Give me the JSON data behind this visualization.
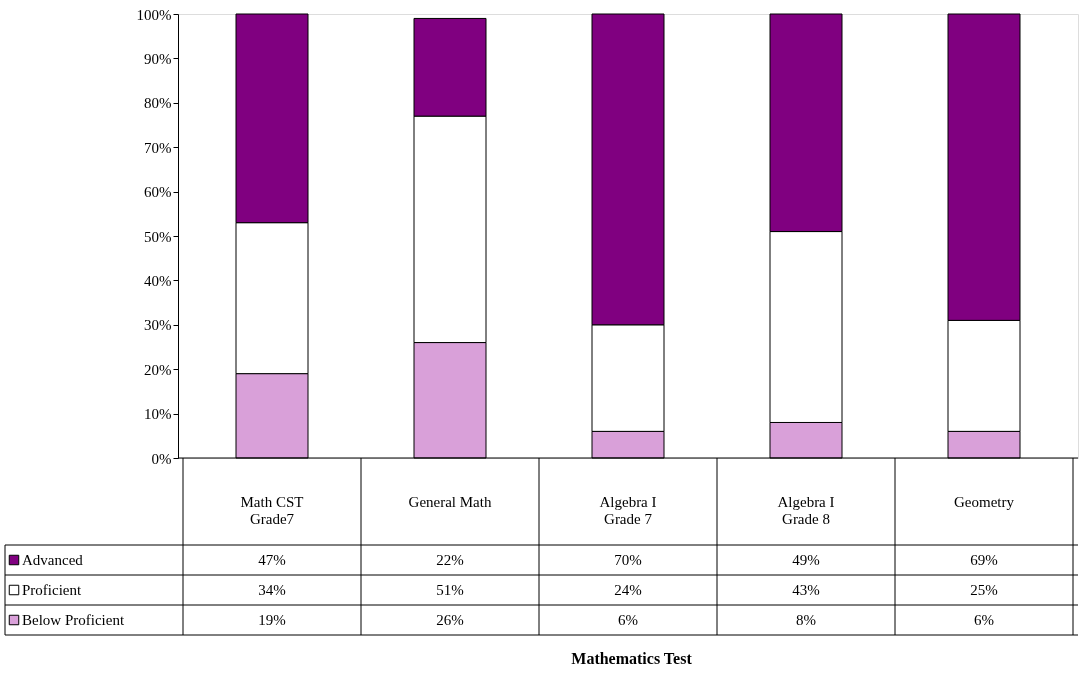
{
  "chart_data": {
    "type": "bar",
    "stacked": true,
    "annotations": [
      "Mathematics Test"
    ],
    "categories": [
      "Math CST\nGrade7",
      "General Math",
      "Algebra I\nGrade 7",
      "Algebra I\nGrade 8",
      "Geometry"
    ],
    "series": [
      {
        "name": "Below Proficient",
        "color": "#d9a0d9",
        "values": [
          19,
          26,
          6,
          8,
          6
        ],
        "value_labels": [
          "19%",
          "26%",
          "6%",
          "8%",
          "6%"
        ]
      },
      {
        "name": "Proficient",
        "color": "#ffffff",
        "values": [
          34,
          51,
          24,
          43,
          25
        ],
        "value_labels": [
          "34%",
          "51%",
          "24%",
          "43%",
          "25%"
        ]
      },
      {
        "name": "Advanced",
        "color": "#800080",
        "values": [
          47,
          22,
          70,
          49,
          69
        ],
        "value_labels": [
          "47%",
          "22%",
          "70%",
          "49%",
          "69%"
        ]
      }
    ],
    "ylim": [
      0,
      100
    ],
    "yticks": [
      {
        "value": 0,
        "label": "0%"
      },
      {
        "value": 10,
        "label": "10%"
      },
      {
        "value": 20,
        "label": "20%"
      },
      {
        "value": 30,
        "label": "30%"
      },
      {
        "value": 40,
        "label": "40%"
      },
      {
        "value": 50,
        "label": "50%"
      },
      {
        "value": 60,
        "label": "60%"
      },
      {
        "value": 70,
        "label": "70%"
      },
      {
        "value": 80,
        "label": "80%"
      },
      {
        "value": 90,
        "label": "90%"
      },
      {
        "value": 100,
        "label": "100%"
      }
    ],
    "grid": false,
    "legend": "bottom left"
  }
}
